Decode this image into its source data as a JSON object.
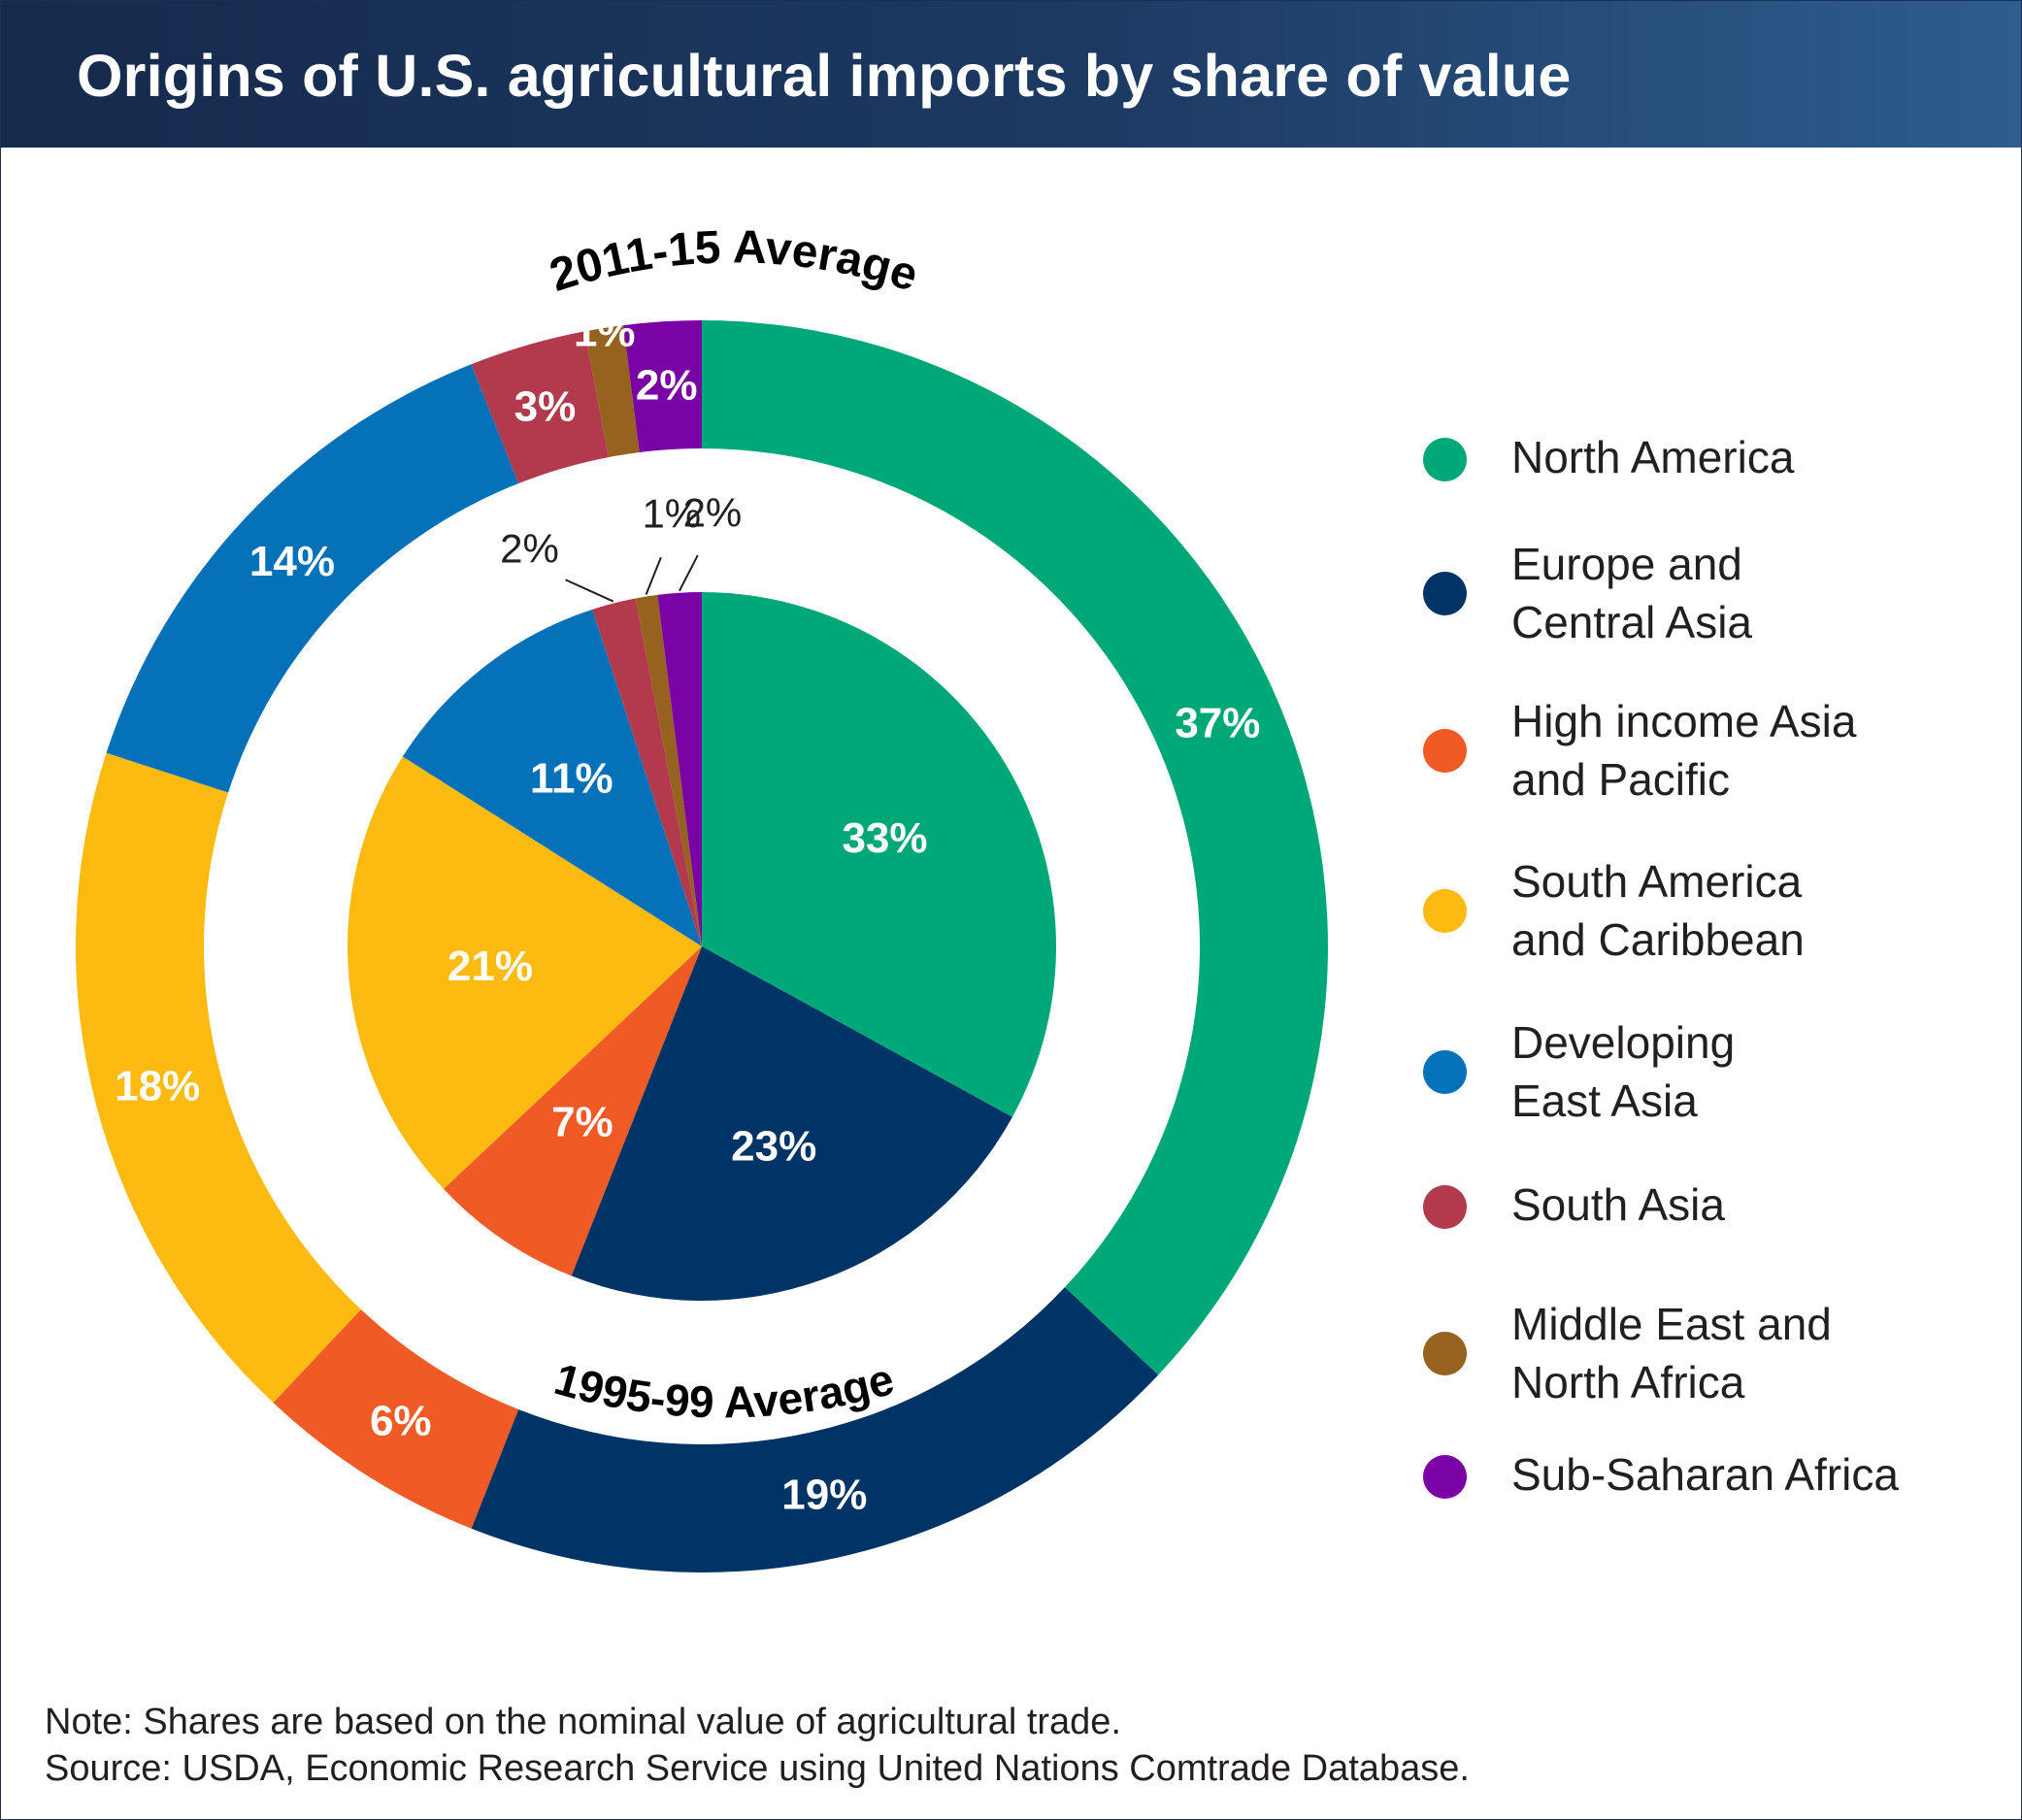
{
  "header": {
    "title": "Origins of U.S. agricultural imports by share of value"
  },
  "colors": {
    "North America": "#00a878",
    "Europe and Central Asia": "#003366",
    "High income Asia and Pacific": "#f05a24",
    "South America and Caribbean": "#fdbb12",
    "Developing East Asia": "#0571b9",
    "South Asia": "#b13a4c",
    "Middle East and North Africa": "#95631f",
    "Sub-Saharan Africa": "#7a03a5",
    "header_bg": "#1d3a63"
  },
  "chart_data": {
    "type": "pie",
    "subtype": "nested donut",
    "categories": [
      "North America",
      "Europe and Central Asia",
      "High income Asia and Pacific",
      "South America and Caribbean",
      "Developing East Asia",
      "South Asia",
      "Middle East and North Africa",
      "Sub-Saharan Africa"
    ],
    "series": [
      {
        "name": "2011-15 Average",
        "ring": "outer",
        "values": [
          37,
          19,
          6,
          18,
          14,
          3,
          1,
          2
        ]
      },
      {
        "name": "1995-99 Average",
        "ring": "inner",
        "values": [
          33,
          23,
          7,
          21,
          11,
          2,
          1,
          2
        ]
      }
    ],
    "outer_labels": [
      "37%",
      "19%",
      "6%",
      "18%",
      "14%",
      "3%",
      "1%",
      "2%"
    ],
    "inner_labels": [
      "33%",
      "23%",
      "7%",
      "21%",
      "11%",
      "2%",
      "1%",
      "2%"
    ],
    "legend_position": "right"
  },
  "legend": [
    {
      "label": "North America"
    },
    {
      "label": "Europe and\nCentral Asia"
    },
    {
      "label": "High income Asia\nand Pacific"
    },
    {
      "label": "South America\nand Caribbean"
    },
    {
      "label": "Developing\nEast Asia"
    },
    {
      "label": "South Asia"
    },
    {
      "label": "Middle East and\nNorth Africa"
    },
    {
      "label": "Sub-Saharan Africa"
    }
  ],
  "footer": {
    "note": "Note: Shares are based on the nominal value of agricultural trade.",
    "source": "Source: USDA, Economic Research Service using United Nations Comtrade Database."
  }
}
